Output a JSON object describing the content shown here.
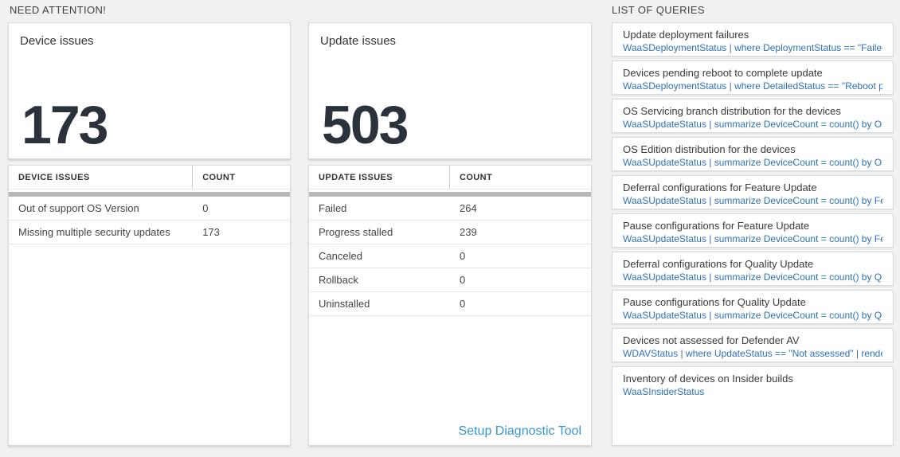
{
  "colors": {
    "page_background": "#f1f1f1",
    "big_number": "#2b323b",
    "query_blue": "#2e71b8",
    "link_blue": "#3a96d2",
    "scrollbar_gray": "#b8b8b8"
  },
  "sections": {
    "need_attention_label": "NEED ATTENTION!",
    "queries_label": "LIST OF QUERIES"
  },
  "device_issues": {
    "title": "Device issues",
    "total": "173",
    "table": {
      "headers": [
        "DEVICE ISSUES",
        "COUNT"
      ],
      "rows": [
        {
          "label": "Out of support OS Version",
          "count": "0"
        },
        {
          "label": "Missing multiple security updates",
          "count": "173"
        }
      ]
    }
  },
  "update_issues": {
    "title": "Update issues",
    "total": "503",
    "table": {
      "headers": [
        "UPDATE ISSUES",
        "COUNT"
      ],
      "rows": [
        {
          "label": "Failed",
          "count": "264"
        },
        {
          "label": "Progress stalled",
          "count": "239"
        },
        {
          "label": "Canceled",
          "count": "0"
        },
        {
          "label": "Rollback",
          "count": "0"
        },
        {
          "label": "Uninstalled",
          "count": "0"
        }
      ]
    },
    "link_label": "Setup Diagnostic Tool"
  },
  "queries": {
    "items": [
      {
        "title": "Update deployment failures",
        "query": "WaaSDeploymentStatus | where DeploymentStatus == \"Failed\" |..."
      },
      {
        "title": "Devices pending reboot to complete update",
        "query": "WaaSDeploymentStatus | where DetailedStatus == \"Reboot pend..."
      },
      {
        "title": "OS Servicing branch distribution for the devices",
        "query": "WaaSUpdateStatus | summarize DeviceCount = count() by OSSer..."
      },
      {
        "title": "OS Edition distribution for the devices",
        "query": "WaaSUpdateStatus | summarize DeviceCount = count() by OSEdit..."
      },
      {
        "title": "Deferral configurations for Feature Update",
        "query": "WaaSUpdateStatus | summarize DeviceCount = count() by Featur..."
      },
      {
        "title": "Pause configurations for Feature Update",
        "query": "WaaSUpdateStatus | summarize DeviceCount = count() by Featur..."
      },
      {
        "title": "Deferral configurations for Quality Update",
        "query": "WaaSUpdateStatus | summarize DeviceCount = count() by Qualit..."
      },
      {
        "title": "Pause configurations for Quality Update",
        "query": "WaaSUpdateStatus | summarize DeviceCount = count() by Qualit..."
      },
      {
        "title": "Devices not assessed for Defender AV",
        "query": "WDAVStatus | where UpdateStatus == \"Not assessed\" | render ta..."
      },
      {
        "title": "Inventory of devices on Insider builds",
        "query": "WaaSInsiderStatus"
      }
    ]
  }
}
